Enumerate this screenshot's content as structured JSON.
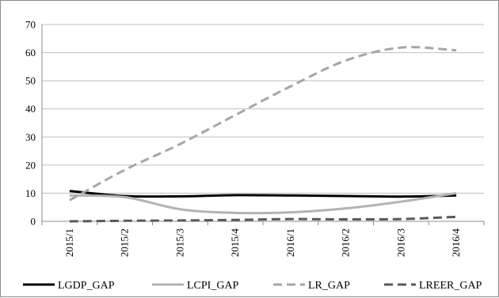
{
  "chart_data": {
    "type": "line",
    "categories": [
      "2015/1",
      "2015/2",
      "2015/3",
      "2015/4",
      "2016/1",
      "2016/2",
      "2016/3",
      "2016/4"
    ],
    "ylim": [
      0,
      70
    ],
    "yticks": [
      0,
      10,
      20,
      30,
      40,
      50,
      60,
      70
    ],
    "grid": true,
    "legend_position": "bottom",
    "series": [
      {
        "name": "LGDP_GAP",
        "color": "#000000",
        "style": "solid",
        "values": [
          10.8,
          9.0,
          8.9,
          9.3,
          9.2,
          9.0,
          8.8,
          9.2
        ]
      },
      {
        "name": "LCPI_GAP",
        "color": "#b3b3b3",
        "style": "solid",
        "values": [
          9.2,
          8.6,
          4.3,
          3.0,
          3.2,
          4.6,
          7.0,
          10.0
        ]
      },
      {
        "name": "LR_GAP",
        "color": "#a6a6a6",
        "style": "dashed",
        "values": [
          7.5,
          18.3,
          27.5,
          37.8,
          48.0,
          57.2,
          61.8,
          60.8
        ]
      },
      {
        "name": "LREER_GAP",
        "color": "#595959",
        "style": "dashed",
        "values": [
          0.0,
          0.2,
          0.3,
          0.5,
          0.8,
          0.7,
          0.8,
          1.6
        ]
      }
    ]
  }
}
